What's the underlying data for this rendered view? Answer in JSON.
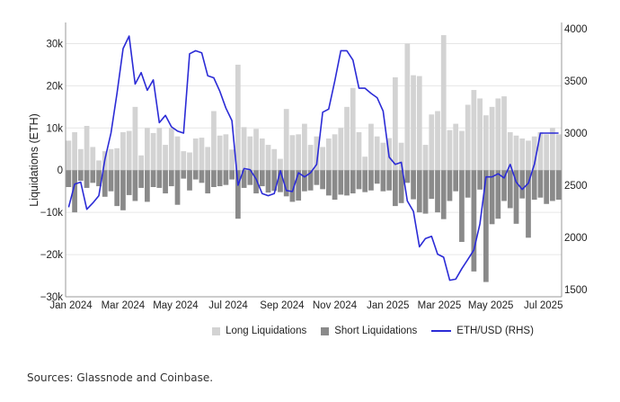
{
  "chart_data": {
    "type": "bar+line",
    "title": "",
    "ylabel": "Liquidations (ETH)",
    "y2label": "ETH/USD (RHS)",
    "ylim": [
      -30000,
      35000
    ],
    "y2lim": [
      1500,
      4000
    ],
    "yticks": [
      -30000,
      -20000,
      -10000,
      0,
      10000,
      20000,
      30000
    ],
    "ytick_labels": [
      "−30k",
      "−20k",
      "−10k",
      "0",
      "10k",
      "20k",
      "30k"
    ],
    "y2ticks": [
      1500,
      2000,
      2500,
      3000,
      3500,
      4000
    ],
    "y2tick_labels": [
      "1500",
      "2000",
      "2500",
      "3000",
      "3500",
      "4000"
    ],
    "xtick_labels": [
      "Jan 2024",
      "Mar 2024",
      "May 2024",
      "Jul 2024",
      "Sep 2024",
      "Nov 2024",
      "Jan 2025",
      "Mar 2025",
      "May 2025",
      "Jul 2025"
    ],
    "xtick_week_index": [
      0,
      8.6,
      17.3,
      26,
      34.9,
      43.6,
      52.4,
      60.9,
      69.4,
      78.1
    ],
    "grid": true,
    "legend_position": "bottom",
    "series": [
      {
        "name": "Long Liquidations",
        "type": "bar",
        "color": "#d3d3d3",
        "values": [
          7000,
          9000,
          5000,
          10500,
          5500,
          2300,
          4500,
          5000,
          5200,
          9000,
          9300,
          15000,
          3500,
          10000,
          8800,
          10000,
          6000,
          10000,
          8000,
          4500,
          4200,
          7500,
          7700,
          5500,
          14000,
          8200,
          8500,
          4900,
          25000,
          10200,
          8000,
          9800,
          7500,
          6000,
          5000,
          2700,
          14500,
          8300,
          8500,
          11000,
          6000,
          8000,
          5500,
          7500,
          8500,
          10000,
          15000,
          19500,
          9000,
          3200,
          11000,
          8000,
          6500,
          7600,
          22000,
          6500,
          30000,
          22500,
          22300,
          6000,
          13200,
          14000,
          32000,
          9500,
          11000,
          9300,
          15500,
          19000,
          17000,
          13000,
          15000,
          17000,
          17500,
          9000,
          8200,
          7500,
          7000,
          8000,
          9000,
          8500,
          10000,
          8500
        ],
        "unit": "ETH"
      },
      {
        "name": "Short Liquidations",
        "type": "bar",
        "color": "#8a8a8a",
        "values": [
          -4000,
          -10000,
          -2500,
          -4200,
          -3000,
          -3800,
          -6300,
          -5000,
          -8500,
          -9500,
          -5900,
          -7300,
          -4200,
          -7500,
          -4000,
          -4200,
          -5500,
          -3800,
          -8200,
          -2000,
          -4800,
          -2200,
          -3000,
          -5500,
          -4000,
          -3800,
          -3500,
          -2200,
          -11500,
          -4200,
          -3500,
          -5500,
          -3800,
          -5300,
          -4900,
          -5200,
          -6200,
          -7500,
          -7200,
          -5000,
          -4800,
          -3500,
          -4500,
          -6000,
          -7000,
          -5800,
          -6000,
          -5500,
          -4500,
          -5200,
          -4800,
          -3200,
          -5000,
          -4800,
          -8500,
          -7800,
          -3000,
          -6900,
          -10000,
          -10300,
          -6800,
          -10000,
          -11600,
          -7300,
          -5000,
          -17000,
          -6500,
          -24000,
          -4600,
          -26500,
          -12800,
          -11500,
          -7300,
          -9000,
          -12700,
          -6700,
          -16000,
          -7000,
          -6500,
          -8000,
          -7300,
          -7000
        ],
        "unit": "ETH"
      },
      {
        "name": "ETH/USD (RHS)",
        "type": "line",
        "axis": "right",
        "color": "#2b2bd6",
        "values": [
          2290,
          2510,
          2530,
          2270,
          2330,
          2400,
          2750,
          3000,
          3380,
          3810,
          3930,
          3470,
          3580,
          3410,
          3510,
          3100,
          3170,
          3060,
          3020,
          3000,
          3760,
          3790,
          3770,
          3550,
          3530,
          3400,
          3240,
          3120,
          2500,
          2660,
          2650,
          2560,
          2420,
          2400,
          2420,
          2640,
          2450,
          2440,
          2620,
          2580,
          2620,
          2700,
          3200,
          3230,
          3500,
          3790,
          3790,
          3700,
          3430,
          3430,
          3380,
          3340,
          3210,
          2770,
          2700,
          2720,
          2350,
          2250,
          1910,
          1990,
          2010,
          1840,
          1810,
          1590,
          1600,
          1700,
          1790,
          1880,
          2130,
          2580,
          2580,
          2610,
          2570,
          2700,
          2530,
          2460,
          2520,
          2700,
          3000,
          3000,
          3000,
          3000
        ],
        "unit": "USD"
      }
    ]
  },
  "legend": {
    "long_label": "Long Liquidations",
    "short_label": "Short Liquidations",
    "eth_label": "ETH/USD (RHS)"
  },
  "footer": {
    "source": "Sources: Glassnode and Coinbase."
  }
}
